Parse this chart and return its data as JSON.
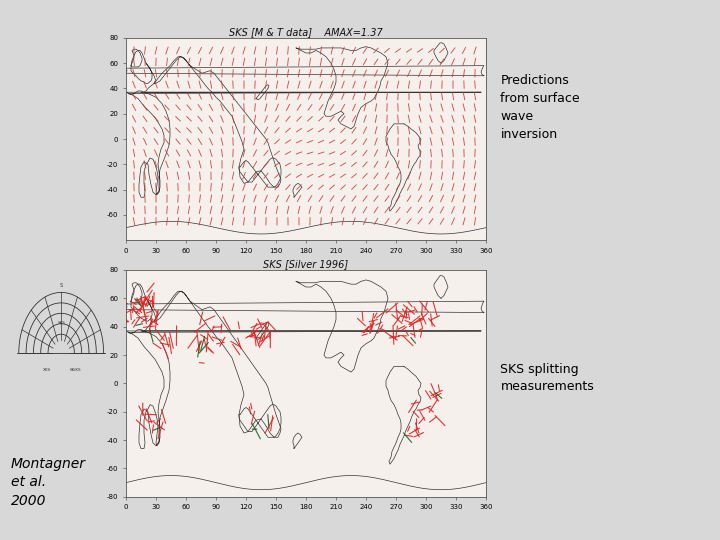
{
  "bg_color": "#d8d8d8",
  "title1": "SKS [M & T data]    AMAX=1.37",
  "title2": "SKS [Silver 1996]",
  "label_right1": "Predictions\nfrom surface\nwave\ninversion",
  "label_right2": "SKS splitting\nmeasurements",
  "label_bottom_left": "Montagner\net al.\n2000",
  "font_size_title": 7,
  "font_size_tick": 5,
  "font_size_annotation": 9,
  "font_size_bottom": 10,
  "map_facecolor": "#f5f0eb",
  "coast_color": "#333333",
  "coast_lw": 0.5,
  "quiver_color1": "#cc3333",
  "quiver_color2": "#dd2222",
  "inset_color": "#333333"
}
